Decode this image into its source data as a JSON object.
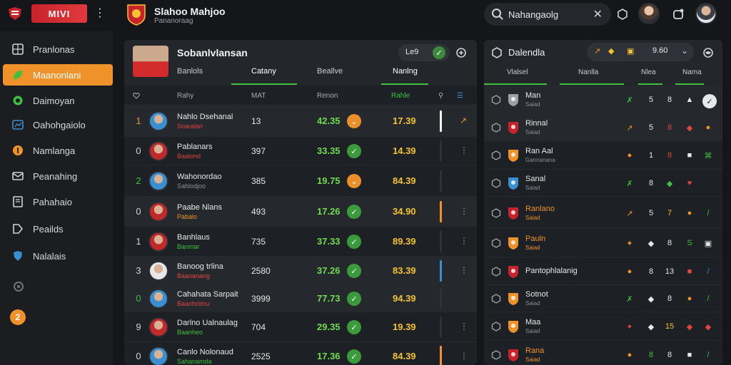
{
  "header": {
    "logo_text": "MIVI",
    "team_title": "Slahoo Mahjoo",
    "team_sub": "Pananoraag",
    "search_value": "Nahangaolg",
    "search_placeholder": "Search"
  },
  "sidebar": {
    "items": [
      {
        "label": "Pranlonas",
        "icon": "grid-icon",
        "active": false
      },
      {
        "label": "Maanonlani",
        "icon": "leaf-icon",
        "active": true
      },
      {
        "label": "Daimoyan",
        "icon": "circle-icon",
        "active": false
      },
      {
        "label": "Oahohgaiolo",
        "icon": "chart-icon",
        "active": false
      },
      {
        "label": "Namlanga",
        "icon": "coin-icon",
        "active": false
      },
      {
        "label": "Peanahing",
        "icon": "mail-icon",
        "active": false
      },
      {
        "label": "Pahahaio",
        "icon": "book-icon",
        "active": false
      },
      {
        "label": "Peailds",
        "icon": "tag-icon",
        "active": false
      },
      {
        "label": "Nalalais",
        "icon": "shield-icon",
        "active": false
      }
    ],
    "bottom_badge": "2"
  },
  "main": {
    "title": "Sobanlvlansan",
    "pill_value": "Le9",
    "tabs": [
      {
        "label": "Banlols",
        "active": false
      },
      {
        "label": "Catany",
        "active": true
      },
      {
        "label": "Beallve",
        "active": false
      },
      {
        "label": "Nanlng",
        "active": true
      }
    ],
    "columns": [
      "Rahy",
      "MAT",
      "Renon",
      "Rahle"
    ],
    "rows": [
      {
        "rank": "1",
        "rank_color": "orange",
        "name": "Nahlo Dsehanal",
        "club": "Soaralan",
        "club_color": "red",
        "ava": "blue",
        "num": "13",
        "score": "42.35",
        "badge": "orange",
        "rating": "17.39",
        "bar": "#f4f4f4",
        "more": "↗",
        "alt": true
      },
      {
        "rank": "0",
        "rank_color": "",
        "name": "Pablanars",
        "club": "Baalond",
        "club_color": "red",
        "ava": "red",
        "num": "397",
        "score": "33.35",
        "badge": "green",
        "rating": "14.39",
        "bar": "",
        "more": "⋮",
        "alt": false
      },
      {
        "rank": "2",
        "rank_color": "green",
        "name": "Wahonordao",
        "club": "Sahlodjoo",
        "club_color": "",
        "ava": "blue",
        "num": "385",
        "score": "19.75",
        "badge": "orange",
        "rating": "84.39",
        "bar": "",
        "more": "",
        "alt": false
      },
      {
        "rank": "0",
        "rank_color": "",
        "name": "Paabe Nlans",
        "club": "Pabalo",
        "club_color": "orange",
        "ava": "red",
        "num": "493",
        "score": "17.26",
        "badge": "green",
        "rating": "34.90",
        "bar": "#f0922a",
        "more": "⋮",
        "alt": true
      },
      {
        "rank": "1",
        "rank_color": "",
        "name": "Banhlaus",
        "club": "Banmar",
        "club_color": "green",
        "ava": "red",
        "num": "735",
        "score": "37.33",
        "badge": "green",
        "rating": "89.39",
        "bar": "",
        "more": "⋮",
        "alt": false
      },
      {
        "rank": "3",
        "rank_color": "",
        "name": "Banoog trlina",
        "club": "Baananang",
        "club_color": "red",
        "ava": "white",
        "num": "2580",
        "score": "37.26",
        "badge": "green",
        "rating": "83.39",
        "bar": "#3a8fd0",
        "more": "⋮",
        "alt": true
      },
      {
        "rank": "0",
        "rank_color": "green",
        "name": "Cahahata Sarpait",
        "club": "Baanholmu",
        "club_color": "red",
        "ava": "blue",
        "num": "3999",
        "score": "77.73",
        "badge": "green",
        "rating": "94.39",
        "bar": "",
        "more": "",
        "alt": true
      },
      {
        "rank": "9",
        "rank_color": "",
        "name": "Darlno Ualnaulag",
        "club": "Baanheo",
        "club_color": "green",
        "ava": "red",
        "num": "704",
        "score": "29.35",
        "badge": "green",
        "rating": "19.39",
        "bar": "",
        "more": "⋮",
        "alt": false
      },
      {
        "rank": "0",
        "rank_color": "",
        "name": "Canlo Nolonaud",
        "club": "Sahanamda",
        "club_color": "green",
        "ava": "blue",
        "num": "2525",
        "score": "17.36",
        "badge": "green",
        "rating": "84.39",
        "bar": "#f0922a",
        "more": "⋮",
        "alt": false
      }
    ]
  },
  "side": {
    "title": "Dalendla",
    "pill_value": "9.60",
    "tabs": [
      "Vlalsel",
      "Nanlla",
      "Nlea",
      "Nama"
    ],
    "rows": [
      {
        "name": "Man",
        "sub": "Saiad",
        "crest": "#9aa1a9",
        "cells": [
          [
            "✗",
            "#3fc13f"
          ],
          [
            "5",
            "#e6e8eb"
          ],
          [
            "8",
            "#e6e8eb"
          ],
          [
            "▲",
            "#e6e8eb"
          ],
          [
            "✓",
            "#e6e8eb"
          ]
        ],
        "alt": true,
        "name_color": ""
      },
      {
        "name": "Rinnal",
        "sub": "Saiad",
        "crest": "#c8232c",
        "cells": [
          [
            "↗",
            "#f0922a"
          ],
          [
            "5",
            "#e6e8eb"
          ],
          [
            "8",
            "#e0453f"
          ],
          [
            "◆",
            "#e0453f"
          ],
          [
            "●",
            "#f0922a"
          ]
        ],
        "alt": true,
        "name_color": ""
      },
      {
        "name": "Ran Aal",
        "sub": "Gannanana",
        "crest": "#f0922a",
        "cells": [
          [
            "●",
            "#f0922a"
          ],
          [
            "1",
            "#e6e8eb"
          ],
          [
            "8",
            "#e0453f"
          ],
          [
            "■",
            "#e6e8eb"
          ],
          [
            "⌘",
            "#3fc13f"
          ]
        ],
        "alt": false,
        "name_color": ""
      },
      {
        "name": "Sanal",
        "sub": "Saiad",
        "crest": "#3a8fd0",
        "cells": [
          [
            "✗",
            "#3fc13f"
          ],
          [
            "8",
            "#e6e8eb"
          ],
          [
            "◆",
            "#3fc13f"
          ],
          [
            "♥",
            "#e0453f"
          ],
          [
            "",
            ""
          ]
        ],
        "alt": false,
        "name_color": ""
      },
      {
        "name": "Ranlano",
        "sub": "Saiad",
        "crest": "#c8232c",
        "cells": [
          [
            "↗",
            "#f0922a"
          ],
          [
            "5",
            "#e6e8eb"
          ],
          [
            "7",
            "#f4c430"
          ],
          [
            "●",
            "#f0922a"
          ],
          [
            "/",
            "#3fc13f"
          ]
        ],
        "alt": false,
        "name_color": "orange"
      },
      {
        "name": "Pauln",
        "sub": "Saiad",
        "crest": "#f0922a",
        "cells": [
          [
            "✦",
            "#f0922a"
          ],
          [
            "◆",
            "#e6e8eb"
          ],
          [
            "8",
            "#e6e8eb"
          ],
          [
            "S",
            "#3fc13f"
          ],
          [
            "▣",
            "#e6e8eb"
          ]
        ],
        "alt": false,
        "name_color": "orange"
      },
      {
        "name": "Pantophlalanig",
        "sub": "",
        "crest": "#c8232c",
        "cells": [
          [
            "●",
            "#f0922a"
          ],
          [
            "8",
            "#e6e8eb"
          ],
          [
            "13",
            "#e6e8eb"
          ],
          [
            "■",
            "#e0453f"
          ],
          [
            "/",
            "#3a8fd0"
          ]
        ],
        "alt": false,
        "name_color": ""
      },
      {
        "name": "Sotnot",
        "sub": "Saiad",
        "crest": "#f0922a",
        "cells": [
          [
            "✗",
            "#3fc13f"
          ],
          [
            "◆",
            "#e6e8eb"
          ],
          [
            "8",
            "#e6e8eb"
          ],
          [
            "●",
            "#f0922a"
          ],
          [
            "/",
            "#3fc13f"
          ]
        ],
        "alt": false,
        "name_color": ""
      },
      {
        "name": "Maa",
        "sub": "Saiad",
        "crest": "#f0922a",
        "cells": [
          [
            "✦",
            "#e0453f"
          ],
          [
            "◆",
            "#e6e8eb"
          ],
          [
            "15",
            "#f4c430"
          ],
          [
            "◆",
            "#e0453f"
          ],
          [
            "◆",
            "#e0453f"
          ]
        ],
        "alt": false,
        "name_color": ""
      },
      {
        "name": "Rana",
        "sub": "Saiad",
        "crest": "#c8232c",
        "cells": [
          [
            "●",
            "#f0922a"
          ],
          [
            "8",
            "#3fc13f"
          ],
          [
            "8",
            "#e6e8eb"
          ],
          [
            "■",
            "#e6e8eb"
          ],
          [
            "/",
            "#3fc13f"
          ]
        ],
        "alt": false,
        "name_color": "orange"
      }
    ]
  },
  "colors": {
    "accent": "#f0922a",
    "green": "#3fc13f",
    "red": "#c8232c"
  }
}
